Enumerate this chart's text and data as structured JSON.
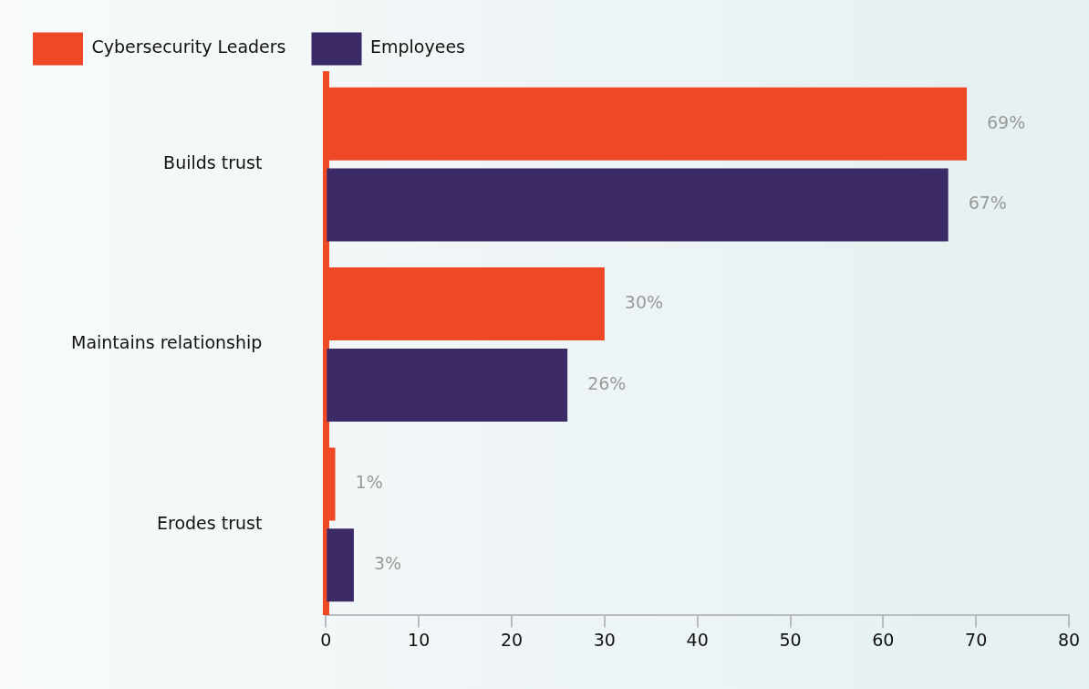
{
  "chart_data": {
    "type": "bar",
    "orientation": "horizontal",
    "categories": [
      "Builds trust",
      "Maintains relationship",
      "Erodes trust"
    ],
    "series": [
      {
        "name": "Cybersecurity Leaders",
        "color": "#ee4826",
        "values": [
          69,
          30,
          1
        ],
        "value_labels": [
          "69%",
          "30%",
          "1%"
        ]
      },
      {
        "name": "Employees",
        "color": "#3b2a66",
        "values": [
          67,
          26,
          3
        ],
        "value_labels": [
          "67%",
          "26%",
          "3%"
        ]
      }
    ],
    "xlim": [
      0,
      80
    ],
    "xticks": [
      0,
      10,
      20,
      30,
      40,
      50,
      60,
      70,
      80
    ],
    "grid": false,
    "legend": "top left"
  }
}
